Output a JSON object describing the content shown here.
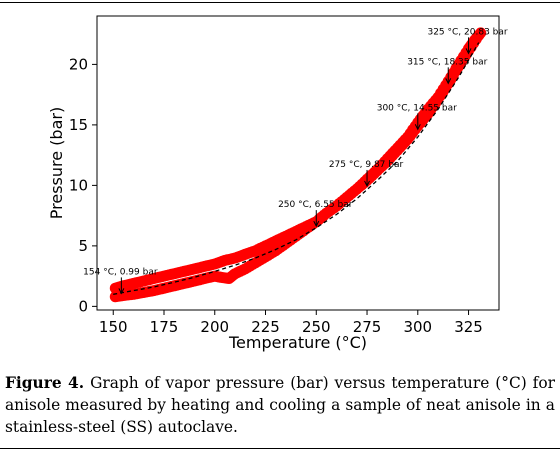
{
  "caption": {
    "label": "Figure 4.",
    "text": "Graph of vapor pressure (bar) versus temperature (°C) for anisole measured by heating and cooling a sample of neat anisole in a stainless-steel (SS) autoclave."
  },
  "chart_data": {
    "type": "scatter",
    "title": "",
    "xlabel": "Temperature (°C)",
    "ylabel": "Pressure (bar)",
    "xlim": [
      142,
      340
    ],
    "ylim": [
      -0.3,
      24
    ],
    "xticks": [
      150,
      175,
      200,
      225,
      250,
      275,
      300,
      325
    ],
    "yticks": [
      0,
      5,
      10,
      15,
      20
    ],
    "grid": false,
    "legend": "none",
    "colors": {
      "points": "#ff0000",
      "fit": "#000000"
    },
    "series": [
      {
        "x": [
          151,
          155,
          160,
          165,
          170,
          175,
          180,
          185,
          190,
          195,
          200,
          205,
          210,
          215,
          220,
          225,
          230,
          235,
          240,
          245,
          250,
          255,
          260,
          265,
          270,
          275,
          280,
          285,
          290,
          295,
          300,
          305,
          310,
          315,
          320,
          325,
          328,
          331
        ],
        "values": [
          1.5,
          1.7,
          1.9,
          2.1,
          2.3,
          2.5,
          2.7,
          2.9,
          3.1,
          3.3,
          3.5,
          3.8,
          4.0,
          4.3,
          4.6,
          5.0,
          5.4,
          5.8,
          6.2,
          6.6,
          7.0,
          7.7,
          8.3,
          9.0,
          9.7,
          10.5,
          11.3,
          12.2,
          13.1,
          14.0,
          15.2,
          16.3,
          17.3,
          18.6,
          20.0,
          21.3,
          22.0,
          22.6
        ]
      },
      {
        "x": [
          151,
          155,
          160,
          165,
          170,
          175,
          180,
          185,
          190,
          195,
          200,
          203,
          207,
          210,
          215,
          220,
          225,
          230,
          235,
          240,
          245,
          250,
          255,
          260,
          265,
          270,
          275,
          280,
          285,
          290,
          295,
          300,
          305,
          310,
          315,
          320,
          325,
          330
        ],
        "values": [
          0.8,
          0.9,
          1.0,
          1.15,
          1.3,
          1.5,
          1.7,
          1.9,
          2.1,
          2.3,
          2.5,
          2.4,
          2.3,
          2.7,
          3.1,
          3.6,
          4.1,
          4.6,
          5.2,
          5.8,
          6.4,
          7.0,
          7.7,
          8.3,
          9.0,
          9.7,
          10.4,
          11.2,
          12.0,
          12.9,
          13.8,
          14.9,
          15.9,
          17.1,
          18.4,
          19.8,
          21.1,
          22.4
        ]
      }
    ],
    "fit": {
      "x": [
        150,
        160,
        170,
        180,
        190,
        200,
        210,
        220,
        230,
        240,
        250,
        260,
        270,
        280,
        290,
        300,
        310,
        320,
        330
      ],
      "values": [
        1.0,
        1.3,
        1.6,
        2.0,
        2.4,
        2.9,
        3.4,
        4.0,
        4.7,
        5.5,
        6.5,
        7.6,
        8.9,
        10.4,
        12.0,
        14.0,
        16.3,
        18.9,
        21.8
      ]
    },
    "annotations": [
      {
        "x": 154,
        "y": 0.99,
        "text": "154 °C, 0.99 bar"
      },
      {
        "x": 250,
        "y": 6.55,
        "text": "250 °C, 6.55 bar"
      },
      {
        "x": 275,
        "y": 9.87,
        "text": "275 °C, 9.87 bar"
      },
      {
        "x": 300,
        "y": 14.55,
        "text": "300 °C, 14.55 bar"
      },
      {
        "x": 315,
        "y": 18.35,
        "text": "315 °C, 18.35 bar"
      },
      {
        "x": 325,
        "y": 20.83,
        "text": "325 °C, 20.83 bar"
      }
    ]
  }
}
